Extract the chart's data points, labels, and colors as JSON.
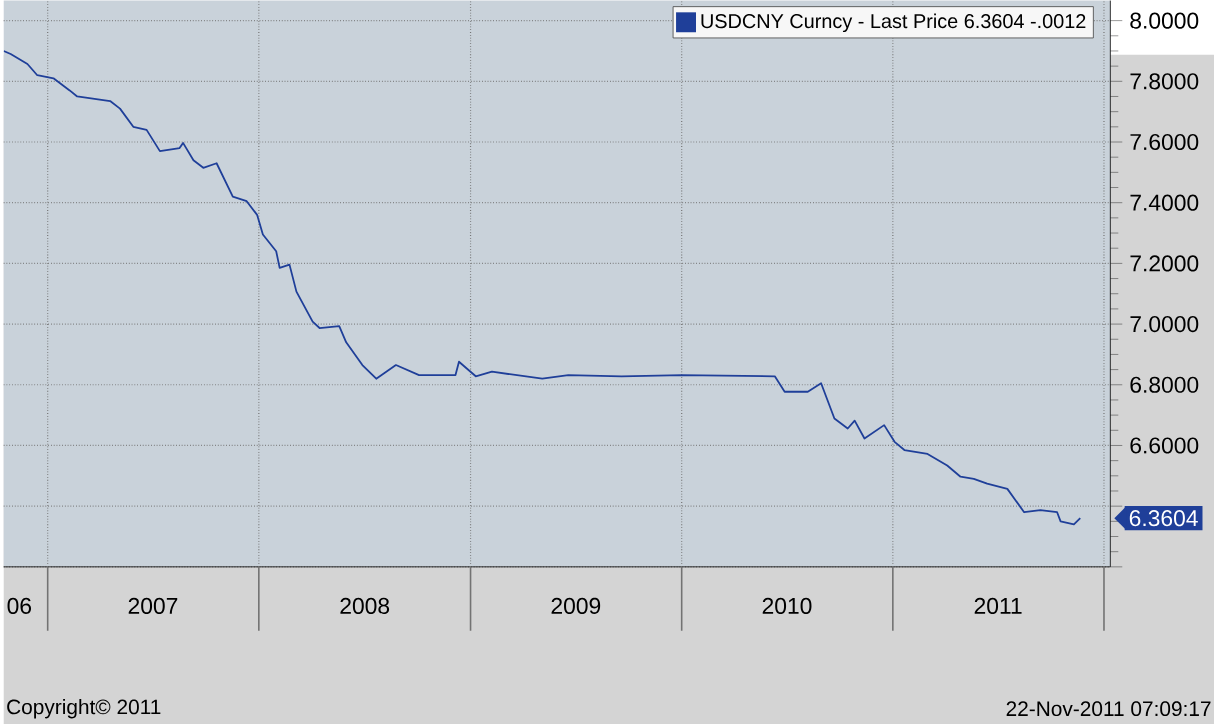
{
  "chart_data": {
    "type": "line",
    "x": [
      "2006-10-17",
      "2006-10-29",
      "2006-11-27",
      "2006-12-14",
      "2007-01-11",
      "2007-02-08",
      "2007-02-21",
      "2007-04-19",
      "2007-05-06",
      "2007-05-29",
      "2007-06-21",
      "2007-07-14",
      "2007-08-17",
      "2007-08-23",
      "2007-09-10",
      "2007-09-27",
      "2007-10-20",
      "2007-11-17",
      "2007-12-11",
      "2007-12-29",
      "2008-01-08",
      "2008-01-31",
      "2008-02-06",
      "2008-02-23",
      "2008-03-06",
      "2008-04-03",
      "2008-04-15",
      "2008-05-19",
      "2008-05-31",
      "2008-06-28",
      "2008-07-22",
      "2008-08-25",
      "2008-10-04",
      "2008-12-06",
      "2008-12-12",
      "2009-01-10",
      "2009-02-07",
      "2009-05-05",
      "2009-06-19",
      "2009-09-19",
      "2010-01-01",
      "2010-06-11",
      "2010-06-28",
      "2010-08-07",
      "2010-08-30",
      "2010-09-22",
      "2010-10-15",
      "2010-10-27",
      "2010-11-13",
      "2010-12-17",
      "2011-01-04",
      "2011-01-21",
      "2011-03-02",
      "2011-04-05",
      "2011-04-28",
      "2011-05-21",
      "2011-06-13",
      "2011-07-18",
      "2011-08-16",
      "2011-09-13",
      "2011-10-12",
      "2011-10-18",
      "2011-11-10",
      "2011-11-21"
    ],
    "series": [
      {
        "name": "USDCNY Curncy - Last Price  6.3604  -.0012",
        "color": "#1f3f99",
        "values": [
          7.9,
          7.89,
          7.857,
          7.82,
          7.81,
          7.77,
          7.75,
          7.735,
          7.71,
          7.65,
          7.64,
          7.57,
          7.58,
          7.597,
          7.54,
          7.515,
          7.53,
          7.42,
          7.405,
          7.36,
          7.295,
          7.24,
          7.185,
          7.196,
          7.107,
          7.008,
          6.987,
          6.993,
          6.94,
          6.865,
          6.82,
          6.865,
          6.832,
          6.832,
          6.876,
          6.828,
          6.843,
          6.82,
          6.832,
          6.828,
          6.832,
          6.828,
          6.777,
          6.777,
          6.805,
          6.689,
          6.656,
          6.682,
          6.623,
          6.667,
          6.612,
          6.585,
          6.572,
          6.534,
          6.497,
          6.49,
          6.474,
          6.457,
          6.38,
          6.387,
          6.38,
          6.35,
          6.34,
          6.3604
        ]
      }
    ],
    "xlim": [
      "2006-10-17",
      "2012-01-12"
    ],
    "xticks": [
      {
        "value": "2006-11-13",
        "label": "06"
      },
      {
        "value": "2007-01-01",
        "label": null
      },
      {
        "value": "2007-07-02",
        "label": "2007"
      },
      {
        "value": "2008-01-01",
        "label": null
      },
      {
        "value": "2008-07-02",
        "label": "2008"
      },
      {
        "value": "2009-01-01",
        "label": null
      },
      {
        "value": "2009-07-02",
        "label": "2009"
      },
      {
        "value": "2010-01-01",
        "label": null
      },
      {
        "value": "2010-07-02",
        "label": "2010"
      },
      {
        "value": "2011-01-01",
        "label": null
      },
      {
        "value": "2011-07-02",
        "label": "2011"
      },
      {
        "value": "2012-01-01",
        "label": null
      }
    ],
    "ylim": [
      6.2,
      8.066
    ],
    "yticks": [
      {
        "value": 6.2,
        "label": null
      },
      {
        "value": 6.4,
        "label": null
      },
      {
        "value": 6.6,
        "label": "6.6000"
      },
      {
        "value": 6.8,
        "label": "6.8000"
      },
      {
        "value": 7.0,
        "label": "7.0000"
      },
      {
        "value": 7.2,
        "label": "7.2000"
      },
      {
        "value": 7.4,
        "label": "7.4000"
      },
      {
        "value": 7.6,
        "label": "7.6000"
      },
      {
        "value": 7.8,
        "label": "7.8000"
      },
      {
        "value": 8.0,
        "label": "8.0000"
      }
    ],
    "grid": true,
    "legend": "top right",
    "annotations": [
      {
        "text": "6.3604",
        "x": "2011-11-21",
        "y": 6.3604
      },
      "Copyright© 2011",
      "22-Nov-2011 07:09:17"
    ]
  }
}
